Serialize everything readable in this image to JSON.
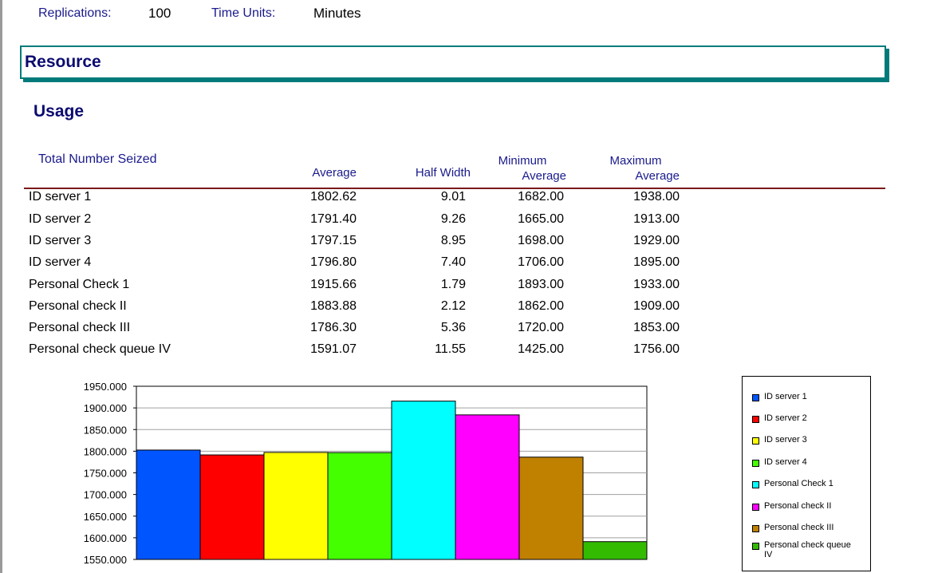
{
  "header": {
    "replications_label": "Replications:",
    "replications_value": "100",
    "time_units_label": "Time Units:",
    "time_units_value": "Minutes"
  },
  "section": {
    "title": "Resource"
  },
  "subsection": {
    "title": "Usage"
  },
  "table": {
    "caption": "Total Number Seized",
    "headers": {
      "average": "Average",
      "half_width": "Half Width",
      "min_avg_line1": "Minimum",
      "min_avg_line2": "Average",
      "max_avg_line1": "Maximum",
      "max_avg_line2": "Average"
    },
    "rows": [
      {
        "name": "ID server 1",
        "average": "1802.62",
        "half_width": "9.01",
        "min": "1682.00",
        "max": "1938.00"
      },
      {
        "name": "ID server 2",
        "average": "1791.40",
        "half_width": "9.26",
        "min": "1665.00",
        "max": "1913.00"
      },
      {
        "name": "ID server 3",
        "average": "1797.15",
        "half_width": "8.95",
        "min": "1698.00",
        "max": "1929.00"
      },
      {
        "name": "ID server 4",
        "average": "1796.80",
        "half_width": "7.40",
        "min": "1706.00",
        "max": "1895.00"
      },
      {
        "name": "Personal Check 1",
        "average": "1915.66",
        "half_width": "1.79",
        "min": "1893.00",
        "max": "1933.00"
      },
      {
        "name": "Personal check II",
        "average": "1883.88",
        "half_width": "2.12",
        "min": "1862.00",
        "max": "1909.00"
      },
      {
        "name": "Personal check III",
        "average": "1786.30",
        "half_width": "5.36",
        "min": "1720.00",
        "max": "1853.00"
      },
      {
        "name": "Personal check queue IV",
        "average": "1591.07",
        "half_width": "11.55",
        "min": "1425.00",
        "max": "1756.00"
      }
    ]
  },
  "chart_data": {
    "type": "bar",
    "title": "",
    "xlabel": "",
    "ylabel": "",
    "ylim": [
      1550,
      1950
    ],
    "yticks": [
      "1950.000",
      "1900.000",
      "1850.000",
      "1800.000",
      "1750.000",
      "1700.000",
      "1650.000",
      "1600.000",
      "1550.000"
    ],
    "ytick_values": [
      1950,
      1900,
      1850,
      1800,
      1750,
      1700,
      1650,
      1600,
      1550
    ],
    "grid": true,
    "legend_position": "right",
    "categories": [
      "ID server 1",
      "ID server 2",
      "ID server 3",
      "ID server 4",
      "Personal Check 1",
      "Personal check II",
      "Personal check III",
      "Personal check queue IV"
    ],
    "values": [
      1802.62,
      1791.4,
      1797.15,
      1796.8,
      1915.66,
      1883.88,
      1786.3,
      1591.07
    ],
    "colors": [
      "#0055ff",
      "#ff0000",
      "#ffff00",
      "#44ff00",
      "#00ffff",
      "#ff00ff",
      "#c08000",
      "#33bb00"
    ],
    "legend": [
      "ID server 1",
      "ID server 2",
      "ID server 3",
      "ID server 4",
      "Personal Check 1",
      "Personal check II",
      "Personal check III",
      "Personal check queue IV"
    ]
  }
}
